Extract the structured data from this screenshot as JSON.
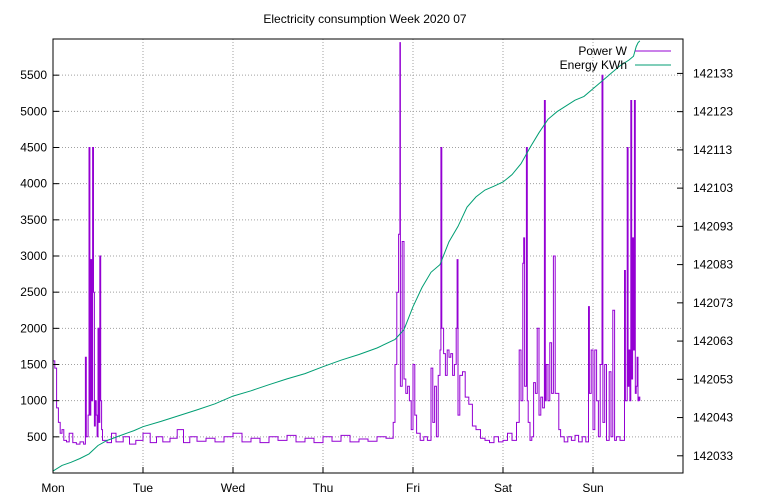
{
  "chart_data": {
    "type": "line",
    "title": "Electricity consumption Week 2020 07",
    "xlabel": "",
    "ylabel": "",
    "y2label": "",
    "grid": true,
    "legend_position": "top-right",
    "x_categories": [
      "Mon",
      "Tue",
      "Wed",
      "Thu",
      "Fri",
      "Sat",
      "Sun"
    ],
    "xlim": [
      0,
      7
    ],
    "ylim": [
      0,
      6000
    ],
    "y2lim": [
      142028.5,
      142142
    ],
    "y_ticks": [
      500,
      1000,
      1500,
      2000,
      2500,
      3000,
      3500,
      4000,
      4500,
      5000,
      5500
    ],
    "y2_ticks": [
      142033,
      142043,
      142053,
      142063,
      142073,
      142083,
      142093,
      142103,
      142113,
      142123,
      142133
    ],
    "series": [
      {
        "name": "Power W",
        "axis": "left",
        "color": "#9400d3",
        "points": [
          [
            0.0,
            1550
          ],
          [
            0.02,
            1450
          ],
          [
            0.04,
            900
          ],
          [
            0.06,
            700
          ],
          [
            0.08,
            550
          ],
          [
            0.1,
            600
          ],
          [
            0.12,
            450
          ],
          [
            0.15,
            430
          ],
          [
            0.18,
            550
          ],
          [
            0.22,
            420
          ],
          [
            0.26,
            400
          ],
          [
            0.3,
            430
          ],
          [
            0.34,
            400
          ],
          [
            0.36,
            1600
          ],
          [
            0.37,
            500
          ],
          [
            0.39,
            800
          ],
          [
            0.4,
            4500
          ],
          [
            0.41,
            800
          ],
          [
            0.42,
            2950
          ],
          [
            0.43,
            1000
          ],
          [
            0.44,
            4500
          ],
          [
            0.45,
            2500
          ],
          [
            0.46,
            650
          ],
          [
            0.47,
            1000
          ],
          [
            0.48,
            800
          ],
          [
            0.49,
            500
          ],
          [
            0.5,
            2000
          ],
          [
            0.51,
            700
          ],
          [
            0.52,
            3000
          ],
          [
            0.53,
            1000
          ],
          [
            0.54,
            600
          ],
          [
            0.55,
            450
          ],
          [
            0.6,
            420
          ],
          [
            0.65,
            550
          ],
          [
            0.7,
            430
          ],
          [
            0.78,
            500
          ],
          [
            0.85,
            400
          ],
          [
            0.92,
            450
          ],
          [
            1.0,
            550
          ],
          [
            1.08,
            420
          ],
          [
            1.15,
            500
          ],
          [
            1.22,
            430
          ],
          [
            1.3,
            480
          ],
          [
            1.38,
            600
          ],
          [
            1.45,
            420
          ],
          [
            1.52,
            500
          ],
          [
            1.6,
            440
          ],
          [
            1.7,
            480
          ],
          [
            1.8,
            430
          ],
          [
            1.9,
            500
          ],
          [
            2.0,
            550
          ],
          [
            2.1,
            430
          ],
          [
            2.2,
            480
          ],
          [
            2.3,
            420
          ],
          [
            2.4,
            500
          ],
          [
            2.5,
            450
          ],
          [
            2.6,
            520
          ],
          [
            2.7,
            430
          ],
          [
            2.8,
            480
          ],
          [
            2.9,
            420
          ],
          [
            3.0,
            500
          ],
          [
            3.1,
            440
          ],
          [
            3.2,
            520
          ],
          [
            3.3,
            430
          ],
          [
            3.4,
            470
          ],
          [
            3.5,
            440
          ],
          [
            3.6,
            500
          ],
          [
            3.7,
            480
          ],
          [
            3.78,
            700
          ],
          [
            3.8,
            1500
          ],
          [
            3.82,
            2500
          ],
          [
            3.84,
            3300
          ],
          [
            3.855,
            5950
          ],
          [
            3.86,
            1200
          ],
          [
            3.88,
            3200
          ],
          [
            3.9,
            1300
          ],
          [
            3.92,
            1100
          ],
          [
            3.94,
            1200
          ],
          [
            3.96,
            1000
          ],
          [
            3.98,
            600
          ],
          [
            4.0,
            1500
          ],
          [
            4.02,
            800
          ],
          [
            4.04,
            550
          ],
          [
            4.08,
            450
          ],
          [
            4.12,
            500
          ],
          [
            4.16,
            450
          ],
          [
            4.2,
            1450
          ],
          [
            4.22,
            700
          ],
          [
            4.24,
            1200
          ],
          [
            4.26,
            500
          ],
          [
            4.28,
            1350
          ],
          [
            4.3,
            1700
          ],
          [
            4.31,
            4500
          ],
          [
            4.32,
            2000
          ],
          [
            4.34,
            1650
          ],
          [
            4.36,
            1350
          ],
          [
            4.38,
            1700
          ],
          [
            4.4,
            1600
          ],
          [
            4.42,
            1650
          ],
          [
            4.44,
            1350
          ],
          [
            4.46,
            1500
          ],
          [
            4.48,
            2000
          ],
          [
            4.49,
            2950
          ],
          [
            4.5,
            800
          ],
          [
            4.52,
            1350
          ],
          [
            4.55,
            1400
          ],
          [
            4.58,
            1050
          ],
          [
            4.62,
            950
          ],
          [
            4.66,
            650
          ],
          [
            4.7,
            600
          ],
          [
            4.75,
            480
          ],
          [
            4.8,
            450
          ],
          [
            4.85,
            420
          ],
          [
            4.9,
            500
          ],
          [
            4.95,
            430
          ],
          [
            5.0,
            450
          ],
          [
            5.05,
            550
          ],
          [
            5.1,
            450
          ],
          [
            5.15,
            700
          ],
          [
            5.18,
            1700
          ],
          [
            5.2,
            1000
          ],
          [
            5.22,
            2900
          ],
          [
            5.23,
            3250
          ],
          [
            5.24,
            1200
          ],
          [
            5.26,
            4500
          ],
          [
            5.27,
            1000
          ],
          [
            5.28,
            700
          ],
          [
            5.3,
            450
          ],
          [
            5.32,
            500
          ],
          [
            5.34,
            1250
          ],
          [
            5.36,
            1100
          ],
          [
            5.38,
            2000
          ],
          [
            5.4,
            800
          ],
          [
            5.42,
            1050
          ],
          [
            5.44,
            900
          ],
          [
            5.46,
            5150
          ],
          [
            5.47,
            1000
          ],
          [
            5.48,
            1500
          ],
          [
            5.5,
            1000
          ],
          [
            5.52,
            1800
          ],
          [
            5.54,
            1100
          ],
          [
            5.56,
            3000
          ],
          [
            5.58,
            1100
          ],
          [
            5.6,
            1100
          ],
          [
            5.62,
            600
          ],
          [
            5.64,
            500
          ],
          [
            5.68,
            430
          ],
          [
            5.72,
            500
          ],
          [
            5.76,
            450
          ],
          [
            5.8,
            520
          ],
          [
            5.84,
            430
          ],
          [
            5.88,
            500
          ],
          [
            5.92,
            430
          ],
          [
            5.95,
            2300
          ],
          [
            5.96,
            1100
          ],
          [
            5.98,
            1700
          ],
          [
            6.0,
            600
          ],
          [
            6.02,
            1700
          ],
          [
            6.04,
            1000
          ],
          [
            6.06,
            500
          ],
          [
            6.08,
            1500
          ],
          [
            6.1,
            5500
          ],
          [
            6.11,
            700
          ],
          [
            6.13,
            1500
          ],
          [
            6.15,
            450
          ],
          [
            6.18,
            1400
          ],
          [
            6.2,
            500
          ],
          [
            6.22,
            2250
          ],
          [
            6.24,
            450
          ],
          [
            6.26,
            500
          ],
          [
            6.3,
            450
          ],
          [
            6.33,
            450
          ],
          [
            6.35,
            2800
          ],
          [
            6.36,
            1000
          ],
          [
            6.38,
            4500
          ],
          [
            6.39,
            1200
          ],
          [
            6.4,
            1700
          ],
          [
            6.41,
            1000
          ],
          [
            6.42,
            5150
          ],
          [
            6.43,
            1300
          ],
          [
            6.44,
            3250
          ],
          [
            6.45,
            1700
          ],
          [
            6.46,
            5150
          ],
          [
            6.47,
            1100
          ],
          [
            6.48,
            1200
          ],
          [
            6.49,
            1600
          ],
          [
            6.5,
            1000
          ],
          [
            6.51,
            1050
          ],
          [
            6.52,
            1000
          ]
        ]
      },
      {
        "name": "Energy KWh",
        "axis": "right",
        "color": "#009e73",
        "points": [
          [
            0.0,
            142029
          ],
          [
            0.1,
            142030.5
          ],
          [
            0.2,
            142031.3
          ],
          [
            0.3,
            142032.3
          ],
          [
            0.4,
            142033.5
          ],
          [
            0.5,
            142035.7
          ],
          [
            0.6,
            142037
          ],
          [
            0.75,
            142038.3
          ],
          [
            0.9,
            142039.6
          ],
          [
            1.0,
            142040.6
          ],
          [
            1.2,
            142042
          ],
          [
            1.4,
            142043.5
          ],
          [
            1.6,
            142045
          ],
          [
            1.8,
            142046.6
          ],
          [
            2.0,
            142048.6
          ],
          [
            2.2,
            142050
          ],
          [
            2.4,
            142051.6
          ],
          [
            2.6,
            142053.1
          ],
          [
            2.8,
            142054.5
          ],
          [
            3.0,
            142056.3
          ],
          [
            3.2,
            142058
          ],
          [
            3.4,
            142059.5
          ],
          [
            3.6,
            142061.2
          ],
          [
            3.8,
            142063.4
          ],
          [
            3.9,
            142066
          ],
          [
            4.0,
            142072
          ],
          [
            4.1,
            142077
          ],
          [
            4.2,
            142081
          ],
          [
            4.3,
            142083
          ],
          [
            4.4,
            142089
          ],
          [
            4.5,
            142093
          ],
          [
            4.6,
            142098
          ],
          [
            4.7,
            142100.7
          ],
          [
            4.8,
            142102.5
          ],
          [
            4.9,
            142103.5
          ],
          [
            5.0,
            142104.6
          ],
          [
            5.1,
            142106.5
          ],
          [
            5.2,
            142109.4
          ],
          [
            5.3,
            142113.6
          ],
          [
            5.4,
            142117.5
          ],
          [
            5.5,
            142121
          ],
          [
            5.6,
            142123
          ],
          [
            5.7,
            142124.5
          ],
          [
            5.8,
            142126
          ],
          [
            5.9,
            142127
          ],
          [
            6.0,
            142129
          ],
          [
            6.1,
            142131
          ],
          [
            6.2,
            142133
          ],
          [
            6.3,
            142135
          ],
          [
            6.4,
            142136.5
          ],
          [
            6.45,
            142137.5
          ],
          [
            6.48,
            142140
          ],
          [
            6.5,
            142141
          ],
          [
            6.52,
            142141.5
          ]
        ]
      }
    ]
  }
}
